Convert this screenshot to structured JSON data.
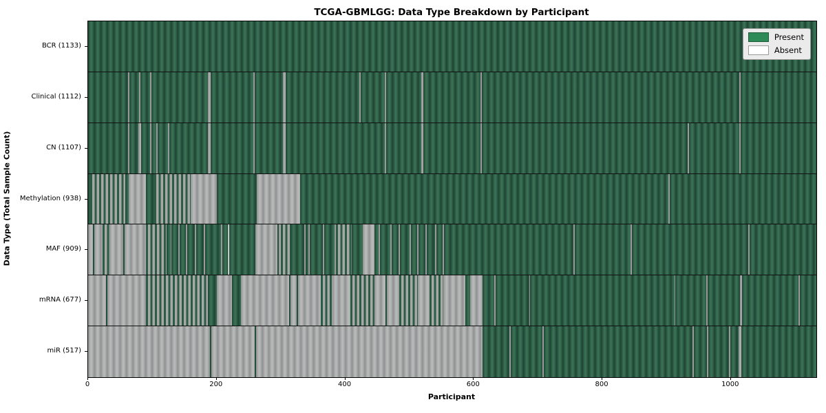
{
  "title": "TCGA-GBMLGG: Data Type Breakdown by Participant",
  "legend": {
    "present_label": "Present",
    "absent_label": "Absent"
  },
  "colors": {
    "present": "#2e8b57",
    "absent": "#ffffff",
    "present_dark_edge": "#1d4433",
    "absent_gray_render": "#aeb0b0",
    "legend_background": "#ebebeb"
  },
  "chart_data": {
    "type": "heatmap",
    "title": "TCGA-GBMLGG: Data Type Breakdown by Participant",
    "xlabel": "Participant",
    "ylabel": "Data Type (Total Sample Count)",
    "x_range": [
      0,
      1133
    ],
    "x_ticks": [
      0,
      200,
      400,
      600,
      800,
      1000
    ],
    "grid": false,
    "legend_position": "upper right",
    "legend_entries": [
      "Present",
      "Absent"
    ],
    "states": {
      "P": "present",
      "A": "absent",
      "M": "mixed present/absent stripes"
    },
    "rows": [
      {
        "label": "BCR (1133)",
        "name": "BCR",
        "total_samples": 1133,
        "segments": [
          [
            0,
            1133,
            "P"
          ]
        ]
      },
      {
        "label": "Clinical (1112)",
        "name": "Clinical",
        "total_samples": 1112,
        "segments": [
          [
            0,
            62,
            "P"
          ],
          [
            62,
            64,
            "A"
          ],
          [
            64,
            79,
            "P"
          ],
          [
            79,
            81,
            "A"
          ],
          [
            81,
            96,
            "P"
          ],
          [
            96,
            98,
            "A"
          ],
          [
            98,
            186,
            "P"
          ],
          [
            186,
            191,
            "A"
          ],
          [
            191,
            257,
            "P"
          ],
          [
            257,
            259,
            "A"
          ],
          [
            259,
            303,
            "P"
          ],
          [
            303,
            307,
            "A"
          ],
          [
            307,
            422,
            "P"
          ],
          [
            422,
            424,
            "A"
          ],
          [
            424,
            462,
            "P"
          ],
          [
            462,
            464,
            "A"
          ],
          [
            464,
            518,
            "P"
          ],
          [
            518,
            521,
            "A"
          ],
          [
            521,
            610,
            "P"
          ],
          [
            610,
            613,
            "A"
          ],
          [
            613,
            1013,
            "P"
          ],
          [
            1013,
            1015,
            "A"
          ],
          [
            1015,
            1133,
            "P"
          ]
        ]
      },
      {
        "label": "CN (1107)",
        "name": "CN",
        "total_samples": 1107,
        "segments": [
          [
            0,
            62,
            "P"
          ],
          [
            62,
            64,
            "A"
          ],
          [
            64,
            78,
            "P"
          ],
          [
            78,
            82,
            "A"
          ],
          [
            82,
            96,
            "P"
          ],
          [
            96,
            98,
            "A"
          ],
          [
            98,
            106,
            "P"
          ],
          [
            106,
            108,
            "A"
          ],
          [
            108,
            124,
            "P"
          ],
          [
            124,
            126,
            "A"
          ],
          [
            126,
            186,
            "P"
          ],
          [
            186,
            191,
            "A"
          ],
          [
            191,
            257,
            "P"
          ],
          [
            257,
            259,
            "A"
          ],
          [
            259,
            303,
            "P"
          ],
          [
            303,
            307,
            "A"
          ],
          [
            307,
            462,
            "P"
          ],
          [
            462,
            464,
            "A"
          ],
          [
            464,
            518,
            "P"
          ],
          [
            518,
            521,
            "A"
          ],
          [
            521,
            610,
            "P"
          ],
          [
            610,
            613,
            "A"
          ],
          [
            613,
            933,
            "P"
          ],
          [
            933,
            935,
            "A"
          ],
          [
            935,
            1013,
            "P"
          ],
          [
            1013,
            1015,
            "A"
          ],
          [
            1015,
            1133,
            "P"
          ]
        ]
      },
      {
        "label": "Methylation (938)",
        "name": "Methylation",
        "total_samples": 938,
        "segments": [
          [
            0,
            3,
            "P"
          ],
          [
            3,
            58,
            "M"
          ],
          [
            58,
            63,
            "P"
          ],
          [
            63,
            90,
            "A"
          ],
          [
            90,
            103,
            "P"
          ],
          [
            103,
            160,
            "M"
          ],
          [
            160,
            200,
            "A"
          ],
          [
            200,
            262,
            "P"
          ],
          [
            262,
            330,
            "A"
          ],
          [
            330,
            903,
            "P"
          ],
          [
            903,
            905,
            "A"
          ],
          [
            905,
            1133,
            "P"
          ]
        ]
      },
      {
        "label": "MAF (909)",
        "name": "MAF",
        "total_samples": 909,
        "segments": [
          [
            0,
            8,
            "A"
          ],
          [
            8,
            10,
            "P"
          ],
          [
            10,
            22,
            "A"
          ],
          [
            22,
            33,
            "M"
          ],
          [
            33,
            55,
            "A"
          ],
          [
            55,
            57,
            "P"
          ],
          [
            57,
            90,
            "A"
          ],
          [
            90,
            122,
            "M"
          ],
          [
            122,
            128,
            "P"
          ],
          [
            128,
            130,
            "A"
          ],
          [
            130,
            140,
            "P"
          ],
          [
            140,
            142,
            "A"
          ],
          [
            142,
            152,
            "P"
          ],
          [
            152,
            154,
            "A"
          ],
          [
            154,
            166,
            "P"
          ],
          [
            166,
            168,
            "A"
          ],
          [
            168,
            180,
            "P"
          ],
          [
            180,
            182,
            "A"
          ],
          [
            182,
            207,
            "P"
          ],
          [
            207,
            209,
            "A"
          ],
          [
            209,
            217,
            "P"
          ],
          [
            217,
            219,
            "A"
          ],
          [
            219,
            260,
            "P"
          ],
          [
            260,
            295,
            "A"
          ],
          [
            295,
            297,
            "P"
          ],
          [
            297,
            300,
            "A"
          ],
          [
            300,
            315,
            "M"
          ],
          [
            315,
            336,
            "P"
          ],
          [
            336,
            338,
            "A"
          ],
          [
            338,
            343,
            "P"
          ],
          [
            343,
            345,
            "A"
          ],
          [
            345,
            365,
            "P"
          ],
          [
            365,
            367,
            "A"
          ],
          [
            367,
            383,
            "P"
          ],
          [
            383,
            385,
            "A"
          ],
          [
            385,
            410,
            "M"
          ],
          [
            410,
            427,
            "P"
          ],
          [
            427,
            445,
            "A"
          ],
          [
            445,
            452,
            "P"
          ],
          [
            452,
            454,
            "A"
          ],
          [
            454,
            470,
            "P"
          ],
          [
            470,
            472,
            "A"
          ],
          [
            472,
            483,
            "P"
          ],
          [
            483,
            485,
            "A"
          ],
          [
            485,
            500,
            "P"
          ],
          [
            500,
            502,
            "A"
          ],
          [
            502,
            512,
            "P"
          ],
          [
            512,
            514,
            "A"
          ],
          [
            514,
            525,
            "P"
          ],
          [
            525,
            527,
            "A"
          ],
          [
            527,
            540,
            "P"
          ],
          [
            540,
            542,
            "A"
          ],
          [
            542,
            552,
            "P"
          ],
          [
            552,
            554,
            "A"
          ],
          [
            554,
            755,
            "P"
          ],
          [
            755,
            757,
            "A"
          ],
          [
            757,
            844,
            "P"
          ],
          [
            844,
            846,
            "A"
          ],
          [
            846,
            1027,
            "P"
          ],
          [
            1027,
            1029,
            "A"
          ],
          [
            1029,
            1133,
            "P"
          ]
        ]
      },
      {
        "label": "mRNA (677)",
        "name": "mRNA",
        "total_samples": 677,
        "segments": [
          [
            0,
            28,
            "A"
          ],
          [
            28,
            30,
            "P"
          ],
          [
            30,
            90,
            "A"
          ],
          [
            90,
            186,
            "M"
          ],
          [
            186,
            200,
            "P"
          ],
          [
            200,
            224,
            "A"
          ],
          [
            224,
            238,
            "P"
          ],
          [
            238,
            313,
            "A"
          ],
          [
            313,
            315,
            "P"
          ],
          [
            315,
            325,
            "A"
          ],
          [
            325,
            327,
            "P"
          ],
          [
            327,
            362,
            "A"
          ],
          [
            362,
            380,
            "M"
          ],
          [
            380,
            408,
            "A"
          ],
          [
            408,
            445,
            "M"
          ],
          [
            445,
            463,
            "A"
          ],
          [
            463,
            465,
            "P"
          ],
          [
            465,
            484,
            "A"
          ],
          [
            484,
            513,
            "M"
          ],
          [
            513,
            531,
            "A"
          ],
          [
            531,
            553,
            "M"
          ],
          [
            553,
            587,
            "A"
          ],
          [
            587,
            594,
            "P"
          ],
          [
            594,
            614,
            "A"
          ],
          [
            614,
            632,
            "P"
          ],
          [
            632,
            634,
            "A"
          ],
          [
            634,
            686,
            "P"
          ],
          [
            686,
            688,
            "A"
          ],
          [
            688,
            912,
            "P"
          ],
          [
            912,
            914,
            "A"
          ],
          [
            914,
            962,
            "P"
          ],
          [
            962,
            964,
            "A"
          ],
          [
            964,
            1014,
            "P"
          ],
          [
            1014,
            1017,
            "A"
          ],
          [
            1017,
            1105,
            "P"
          ],
          [
            1105,
            1107,
            "A"
          ],
          [
            1107,
            1133,
            "P"
          ]
        ]
      },
      {
        "label": "miR (517)",
        "name": "miR",
        "total_samples": 517,
        "segments": [
          [
            0,
            190,
            "A"
          ],
          [
            190,
            192,
            "P"
          ],
          [
            192,
            259,
            "A"
          ],
          [
            259,
            261,
            "P"
          ],
          [
            261,
            614,
            "A"
          ],
          [
            614,
            655,
            "P"
          ],
          [
            655,
            657,
            "A"
          ],
          [
            657,
            707,
            "P"
          ],
          [
            707,
            709,
            "A"
          ],
          [
            709,
            940,
            "P"
          ],
          [
            940,
            942,
            "A"
          ],
          [
            942,
            963,
            "P"
          ],
          [
            963,
            965,
            "A"
          ],
          [
            965,
            997,
            "P"
          ],
          [
            997,
            999,
            "A"
          ],
          [
            999,
            1012,
            "P"
          ],
          [
            1012,
            1016,
            "A"
          ],
          [
            1016,
            1133,
            "P"
          ]
        ]
      }
    ]
  }
}
